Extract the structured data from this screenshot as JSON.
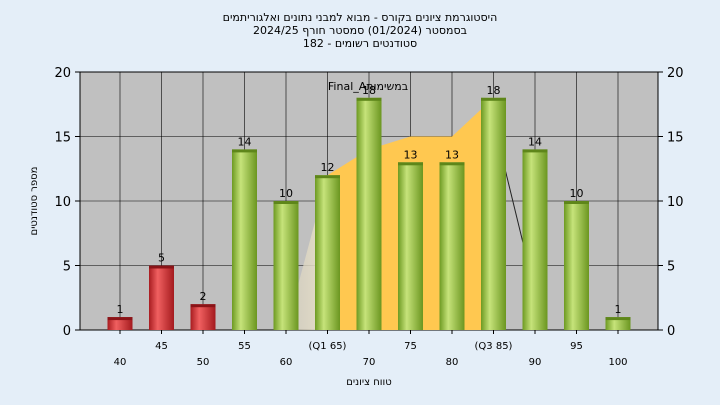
{
  "chart_data": {
    "type": "bar",
    "title": [
      "היסטוגרמת ציונים בקורס - מבוא למבני נתונים ואלגוריתמים",
      "בסמסטר  (01/2024)  סמסטר חורף 2024/25",
      "סטודנטים רשומים - 182"
    ],
    "xlabel": "טווח ציונים",
    "ylabel": "מספר סטודנטים",
    "ylim": [
      0,
      20
    ],
    "yticks": [
      "0",
      "5",
      "10",
      "15",
      "20"
    ],
    "grid": true,
    "categories": [
      "40",
      "45",
      "50",
      "55",
      "60",
      "(Q1 65)",
      "70",
      "75",
      "80",
      "(Q3 85)",
      "90",
      "95",
      "100"
    ],
    "values": [
      1,
      5,
      2,
      14,
      10,
      12,
      18,
      13,
      13,
      18,
      14,
      10,
      1
    ],
    "bar_colors": [
      "#d42a30",
      "#d42a30",
      "#d42a30",
      "#8fc23a",
      "#8fc23a",
      "#8fc23a",
      "#8fc23a",
      "#8fc23a",
      "#8fc23a",
      "#8fc23a",
      "#8fc23a",
      "#8fc23a",
      "#8fc23a"
    ],
    "colors": {
      "failing_bar": "#d42a30",
      "passing_bar": "#8fc23a",
      "plot_bg": "#c0c0c0",
      "page_bg": "#e4eef8",
      "area_fill": "#ffc850",
      "area_light": "#e8e0c8"
    },
    "area_annotation": "Final_Aבמשימות",
    "area_points": [
      [
        5,
        12
      ],
      [
        6,
        14
      ],
      [
        7,
        15
      ],
      [
        8,
        15
      ],
      [
        9,
        18
      ]
    ]
  }
}
